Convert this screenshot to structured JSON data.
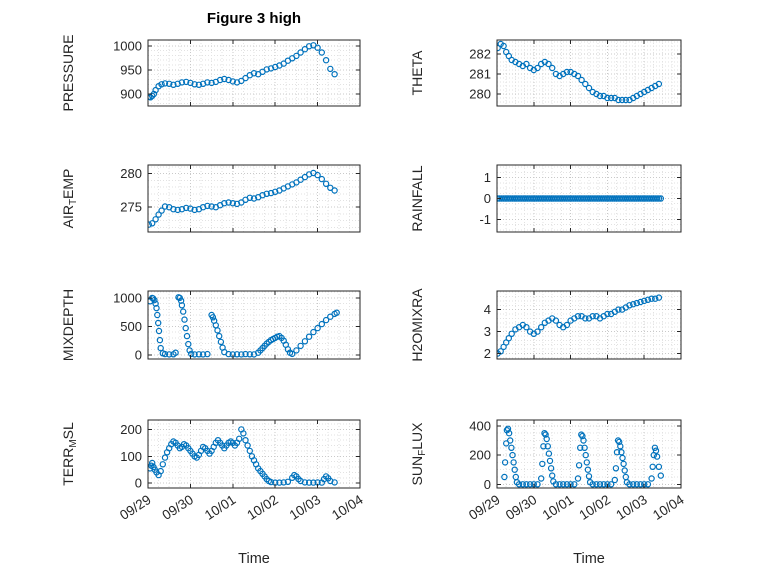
{
  "title": "Figure 3 high",
  "colors": {
    "marker": "#0072BD",
    "axis": "#262626",
    "grid_major": "#c9c9c9",
    "grid_minor": "#e2e2e2"
  },
  "x_axis": {
    "label": "Time",
    "lim": [
      0,
      5
    ],
    "tick_positions": [
      0,
      1,
      2,
      3,
      4,
      5
    ],
    "tick_labels": [
      "09/29",
      "09/30",
      "10/01",
      "10/02",
      "10/03",
      "10/04"
    ],
    "minor_step": 0.25
  },
  "chart_data": [
    {
      "key": "pressure",
      "type": "scatter",
      "marker": "circle-open",
      "ylabel_parts": [
        {
          "t": "PRESSURE"
        }
      ],
      "ylim": [
        875,
        1012
      ],
      "yticks": [
        900,
        950,
        1000
      ],
      "yminor": 10,
      "x": [
        0.02,
        0.06,
        0.1,
        0.14,
        0.18,
        0.25,
        0.32,
        0.4,
        0.5,
        0.6,
        0.7,
        0.8,
        0.9,
        1.0,
        1.1,
        1.2,
        1.3,
        1.4,
        1.5,
        1.6,
        1.7,
        1.8,
        1.9,
        2.0,
        2.1,
        2.2,
        2.3,
        2.4,
        2.5,
        2.6,
        2.7,
        2.8,
        2.9,
        3.0,
        3.1,
        3.2,
        3.3,
        3.4,
        3.5,
        3.6,
        3.7,
        3.8,
        3.9,
        4.0,
        4.1,
        4.2,
        4.3,
        4.4
      ],
      "y": [
        894,
        893,
        896,
        900,
        908,
        916,
        920,
        922,
        921,
        919,
        921,
        924,
        925,
        923,
        920,
        919,
        921,
        924,
        923,
        925,
        929,
        931,
        929,
        926,
        924,
        927,
        933,
        939,
        943,
        941,
        946,
        951,
        953,
        956,
        959,
        963,
        969,
        974,
        979,
        986,
        993,
        999,
        1001,
        996,
        986,
        970,
        952,
        941
      ]
    },
    {
      "key": "theta",
      "type": "scatter",
      "marker": "circle-open",
      "ylabel_parts": [
        {
          "t": "THETA"
        }
      ],
      "ylim": [
        279.4,
        282.7
      ],
      "yticks": [
        280,
        281,
        282
      ],
      "yminor": 0.2,
      "x": [
        0.02,
        0.1,
        0.18,
        0.25,
        0.32,
        0.4,
        0.5,
        0.6,
        0.7,
        0.8,
        0.9,
        1.0,
        1.1,
        1.2,
        1.3,
        1.4,
        1.5,
        1.6,
        1.7,
        1.8,
        1.9,
        2.0,
        2.1,
        2.2,
        2.3,
        2.4,
        2.5,
        2.6,
        2.7,
        2.8,
        2.9,
        3.0,
        3.1,
        3.2,
        3.3,
        3.4,
        3.5,
        3.6,
        3.7,
        3.8,
        3.9,
        4.0,
        4.1,
        4.2,
        4.3,
        4.4
      ],
      "y": [
        282.3,
        282.5,
        282.4,
        282.1,
        281.9,
        281.7,
        281.6,
        281.5,
        281.4,
        281.5,
        281.3,
        281.2,
        281.3,
        281.5,
        281.6,
        281.5,
        281.3,
        281.0,
        280.9,
        281.0,
        281.1,
        281.1,
        281.0,
        280.9,
        280.7,
        280.5,
        280.3,
        280.1,
        280.0,
        279.9,
        279.9,
        279.8,
        279.8,
        279.8,
        279.7,
        279.7,
        279.7,
        279.7,
        279.8,
        279.9,
        280.0,
        280.1,
        280.2,
        280.3,
        280.4,
        280.5
      ]
    },
    {
      "key": "airtemp",
      "type": "scatter",
      "marker": "circle-open",
      "ylabel_parts": [
        {
          "t": "AIR"
        },
        {
          "t": "T",
          "sub": true
        },
        {
          "t": "EMP"
        }
      ],
      "ylim": [
        271.3,
        281.3
      ],
      "yticks": [
        275,
        280
      ],
      "yminor": 1,
      "x": [
        0.02,
        0.1,
        0.18,
        0.25,
        0.32,
        0.4,
        0.5,
        0.6,
        0.7,
        0.8,
        0.9,
        1.0,
        1.1,
        1.2,
        1.3,
        1.4,
        1.5,
        1.6,
        1.7,
        1.8,
        1.9,
        2.0,
        2.1,
        2.2,
        2.3,
        2.4,
        2.5,
        2.6,
        2.7,
        2.8,
        2.9,
        3.0,
        3.1,
        3.2,
        3.3,
        3.4,
        3.5,
        3.6,
        3.7,
        3.8,
        3.9,
        4.0,
        4.1,
        4.2,
        4.3,
        4.4
      ],
      "y": [
        272.4,
        272.6,
        273.2,
        273.9,
        274.5,
        275.1,
        275.0,
        274.7,
        274.6,
        274.7,
        274.9,
        274.8,
        274.6,
        274.7,
        275.0,
        275.2,
        275.1,
        275.0,
        275.3,
        275.6,
        275.7,
        275.6,
        275.5,
        275.7,
        276.1,
        276.4,
        276.3,
        276.5,
        276.8,
        277.0,
        277.1,
        277.3,
        277.5,
        277.8,
        278.1,
        278.4,
        278.7,
        279.1,
        279.5,
        279.9,
        280.1,
        279.8,
        279.2,
        278.5,
        277.9,
        277.5
      ]
    },
    {
      "key": "rainfall",
      "type": "scatter",
      "marker": "circle-open",
      "ylabel_parts": [
        {
          "t": "RAINFALL"
        }
      ],
      "ylim": [
        -1.6,
        1.6
      ],
      "yticks": [
        -1,
        0,
        1
      ],
      "yminor": 0.25,
      "x_range": [
        0.02,
        4.45,
        89
      ],
      "y_const": 0
    },
    {
      "key": "mixdepth",
      "type": "scatter",
      "marker": "circle-open",
      "ylabel_parts": [
        {
          "t": "MIXDEPTH"
        }
      ],
      "ylim": [
        -70,
        1120
      ],
      "yticks": [
        0,
        500,
        1000
      ],
      "yminor": 100,
      "x": [
        0.05,
        0.1,
        0.12,
        0.15,
        0.18,
        0.2,
        0.22,
        0.24,
        0.26,
        0.28,
        0.3,
        0.35,
        0.4,
        0.5,
        0.6,
        0.65,
        0.72,
        0.75,
        0.78,
        0.8,
        0.83,
        0.86,
        0.89,
        0.92,
        0.95,
        0.98,
        1.02,
        1.1,
        1.2,
        1.3,
        1.4,
        1.5,
        1.53,
        1.56,
        1.6,
        1.64,
        1.68,
        1.72,
        1.76,
        1.8,
        1.9,
        2.0,
        2.1,
        2.2,
        2.3,
        2.4,
        2.5,
        2.6,
        2.65,
        2.7,
        2.75,
        2.8,
        2.85,
        2.9,
        2.95,
        3.0,
        3.05,
        3.1,
        3.15,
        3.2,
        3.25,
        3.3,
        3.35,
        3.4,
        3.5,
        3.6,
        3.7,
        3.8,
        3.9,
        4.0,
        4.1,
        4.2,
        4.3,
        4.4,
        4.45
      ],
      "y": [
        940,
        1000,
        990,
        960,
        900,
        820,
        700,
        560,
        420,
        260,
        120,
        30,
        15,
        10,
        12,
        40,
        1010,
        1000,
        950,
        870,
        760,
        620,
        470,
        330,
        190,
        80,
        20,
        10,
        12,
        10,
        15,
        700,
        660,
        600,
        520,
        430,
        330,
        230,
        130,
        50,
        15,
        10,
        12,
        10,
        15,
        12,
        10,
        40,
        80,
        120,
        160,
        200,
        230,
        260,
        280,
        300,
        320,
        330,
        300,
        250,
        180,
        100,
        40,
        20,
        80,
        160,
        240,
        320,
        400,
        470,
        540,
        610,
        670,
        720,
        740
      ]
    },
    {
      "key": "h2omixra",
      "type": "scatter",
      "marker": "circle-open",
      "ylabel_parts": [
        {
          "t": "H2OMIXRA"
        }
      ],
      "ylim": [
        1.75,
        4.85
      ],
      "yticks": [
        2,
        3,
        4
      ],
      "yminor": 0.2,
      "x": [
        0.02,
        0.1,
        0.18,
        0.25,
        0.32,
        0.4,
        0.5,
        0.6,
        0.7,
        0.8,
        0.9,
        1.0,
        1.1,
        1.2,
        1.3,
        1.4,
        1.5,
        1.6,
        1.7,
        1.8,
        1.9,
        2.0,
        2.1,
        2.2,
        2.3,
        2.4,
        2.5,
        2.6,
        2.7,
        2.8,
        2.9,
        3.0,
        3.1,
        3.2,
        3.3,
        3.4,
        3.5,
        3.6,
        3.7,
        3.8,
        3.9,
        4.0,
        4.1,
        4.2,
        4.3,
        4.4
      ],
      "y": [
        2.0,
        2.1,
        2.3,
        2.5,
        2.7,
        2.9,
        3.1,
        3.2,
        3.3,
        3.2,
        3.0,
        2.9,
        3.0,
        3.2,
        3.4,
        3.5,
        3.6,
        3.5,
        3.3,
        3.2,
        3.3,
        3.5,
        3.6,
        3.7,
        3.7,
        3.6,
        3.6,
        3.7,
        3.7,
        3.6,
        3.7,
        3.8,
        3.8,
        3.9,
        4.0,
        4.0,
        4.1,
        4.2,
        4.25,
        4.3,
        4.35,
        4.4,
        4.45,
        4.5,
        4.5,
        4.55
      ]
    },
    {
      "key": "terrmsl",
      "type": "scatter",
      "marker": "circle-open",
      "ylabel_parts": [
        {
          "t": "TERR"
        },
        {
          "t": "M",
          "sub": true
        },
        {
          "t": "SL"
        }
      ],
      "ylim": [
        -18,
        235
      ],
      "yticks": [
        0,
        100,
        200
      ],
      "yminor": 20,
      "x": [
        0.05,
        0.08,
        0.1,
        0.13,
        0.16,
        0.2,
        0.25,
        0.3,
        0.35,
        0.4,
        0.45,
        0.5,
        0.55,
        0.6,
        0.65,
        0.7,
        0.75,
        0.8,
        0.85,
        0.9,
        0.95,
        1.0,
        1.05,
        1.1,
        1.15,
        1.2,
        1.25,
        1.3,
        1.35,
        1.4,
        1.45,
        1.5,
        1.55,
        1.6,
        1.65,
        1.7,
        1.75,
        1.8,
        1.85,
        1.9,
        1.95,
        2.0,
        2.05,
        2.1,
        2.15,
        2.2,
        2.25,
        2.3,
        2.35,
        2.4,
        2.45,
        2.5,
        2.55,
        2.6,
        2.65,
        2.7,
        2.75,
        2.8,
        2.85,
        2.9,
        3.0,
        3.1,
        3.2,
        3.3,
        3.4,
        3.45,
        3.5,
        3.55,
        3.6,
        3.7,
        3.8,
        3.9,
        4.0,
        4.1,
        4.15,
        4.2,
        4.25,
        4.3,
        4.4
      ],
      "y": [
        55,
        65,
        75,
        60,
        50,
        40,
        30,
        45,
        70,
        95,
        115,
        130,
        145,
        155,
        150,
        140,
        130,
        135,
        145,
        140,
        130,
        120,
        110,
        100,
        95,
        105,
        120,
        135,
        130,
        120,
        110,
        120,
        135,
        150,
        160,
        150,
        140,
        130,
        140,
        150,
        155,
        150,
        140,
        150,
        165,
        200,
        185,
        160,
        140,
        120,
        100,
        85,
        70,
        55,
        45,
        35,
        25,
        15,
        8,
        4,
        2,
        2,
        3,
        5,
        20,
        30,
        25,
        15,
        8,
        3,
        2,
        2,
        3,
        2,
        15,
        25,
        18,
        8,
        3
      ]
    },
    {
      "key": "sunflux",
      "type": "scatter",
      "marker": "circle-open",
      "ylabel_parts": [
        {
          "t": "SUN"
        },
        {
          "t": "F",
          "sub": true
        },
        {
          "t": "LUX"
        }
      ],
      "ylim": [
        -25,
        440
      ],
      "yticks": [
        0,
        200,
        400
      ],
      "yminor": 50,
      "x": [
        0.2,
        0.22,
        0.25,
        0.27,
        0.3,
        0.33,
        0.36,
        0.39,
        0.42,
        0.45,
        0.48,
        0.51,
        0.54,
        0.6,
        0.7,
        0.8,
        0.9,
        1.0,
        1.1,
        1.2,
        1.23,
        1.26,
        1.29,
        1.32,
        1.35,
        1.38,
        1.41,
        1.44,
        1.47,
        1.5,
        1.53,
        1.6,
        1.7,
        1.8,
        1.9,
        2.0,
        2.1,
        2.2,
        2.23,
        2.26,
        2.29,
        2.32,
        2.35,
        2.38,
        2.41,
        2.44,
        2.47,
        2.5,
        2.53,
        2.6,
        2.7,
        2.8,
        2.9,
        3.0,
        3.1,
        3.2,
        3.23,
        3.26,
        3.29,
        3.32,
        3.35,
        3.38,
        3.41,
        3.44,
        3.47,
        3.5,
        3.53,
        3.6,
        3.7,
        3.8,
        3.9,
        4.0,
        4.1,
        4.2,
        4.23,
        4.26,
        4.29,
        4.32,
        4.35,
        4.4,
        4.45
      ],
      "y": [
        50,
        150,
        280,
        370,
        380,
        350,
        300,
        250,
        200,
        150,
        100,
        50,
        15,
        0,
        0,
        0,
        0,
        0,
        0,
        40,
        140,
        260,
        350,
        340,
        310,
        260,
        210,
        160,
        110,
        60,
        20,
        0,
        0,
        0,
        0,
        0,
        0,
        40,
        130,
        250,
        340,
        330,
        300,
        250,
        200,
        150,
        100,
        55,
        15,
        0,
        0,
        0,
        0,
        0,
        0,
        30,
        110,
        220,
        300,
        290,
        260,
        220,
        180,
        140,
        95,
        50,
        15,
        0,
        0,
        0,
        0,
        0,
        0,
        40,
        120,
        200,
        250,
        230,
        190,
        120,
        60
      ]
    }
  ]
}
